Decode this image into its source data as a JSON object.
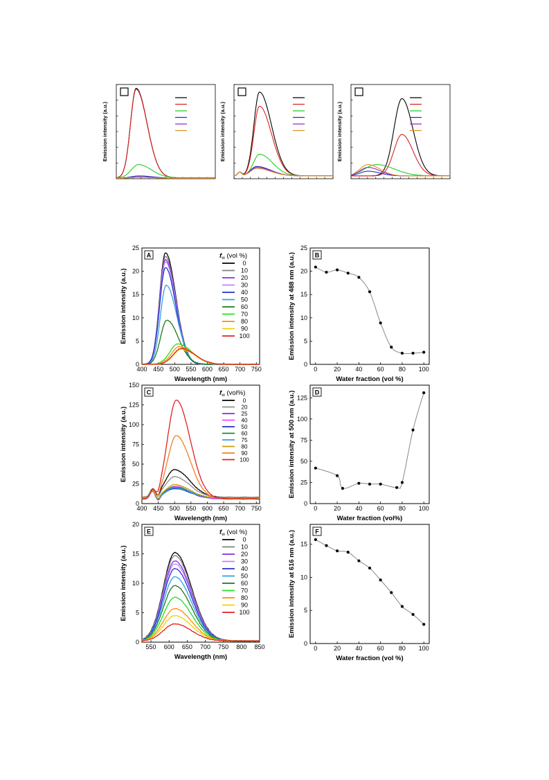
{
  "chart_data": [
    {
      "id": "top-a",
      "type": "line",
      "panel_label": "",
      "title": "",
      "xlabel": "",
      "ylabel": "Emission intensity (a.u.)",
      "xlim": [
        400,
        750
      ],
      "ylim": [
        0,
        100
      ],
      "xticks_count": 12,
      "yticks_count": 6,
      "tick_labels_visible": false,
      "legend": {
        "position": "top-right",
        "title": "",
        "entries": [
          "",
          "",
          "",
          "",
          "",
          ""
        ]
      },
      "series": [
        {
          "color": "#000000",
          "gaussian": {
            "peak": 470,
            "amp": 95,
            "width_left": 28,
            "width_right": 55,
            "base": 1
          }
        },
        {
          "color": "#e02020",
          "gaussian": {
            "peak": 470,
            "amp": 94,
            "width_left": 28,
            "width_right": 55,
            "base": 1
          }
        },
        {
          "color": "#22cc22",
          "gaussian": {
            "peak": 478,
            "amp": 14,
            "width_left": 35,
            "width_right": 65,
            "base": 1
          }
        },
        {
          "color": "#1a2fd0",
          "gaussian": {
            "peak": 480,
            "amp": 2.5,
            "width_left": 40,
            "width_right": 70,
            "base": 0.5
          }
        },
        {
          "color": "#a020c0",
          "gaussian": {
            "peak": 480,
            "amp": 1.5,
            "width_left": 40,
            "width_right": 70,
            "base": 0.5
          }
        },
        {
          "color": "#e09020",
          "gaussian": {
            "peak": 480,
            "amp": 1.0,
            "width_left": 40,
            "width_right": 70,
            "base": 0.5
          }
        }
      ]
    },
    {
      "id": "top-b",
      "type": "line",
      "panel_label": "",
      "title": "",
      "xlabel": "",
      "ylabel": "Emission intensity (a.u.)",
      "xlim": [
        400,
        750
      ],
      "ylim": [
        0,
        100
      ],
      "xticks_count": 12,
      "yticks_count": 6,
      "tick_labels_visible": false,
      "legend": {
        "position": "top-right",
        "title": "",
        "entries": [
          "",
          "",
          "",
          "",
          "",
          ""
        ]
      },
      "series": [
        {
          "color": "#000000",
          "gaussian": {
            "peak": 490,
            "amp": 89,
            "width_left": 28,
            "width_right": 60,
            "base": 3
          }
        },
        {
          "color": "#e02020",
          "gaussian": {
            "peak": 490,
            "amp": 74,
            "width_left": 28,
            "width_right": 60,
            "base": 3
          }
        },
        {
          "color": "#22cc22",
          "gaussian": {
            "peak": 490,
            "amp": 23,
            "width_left": 30,
            "width_right": 65,
            "base": 3
          }
        },
        {
          "color": "#1a2fd0",
          "gaussian": {
            "peak": 480,
            "amp": 10,
            "width_left": 30,
            "width_right": 70,
            "base": 3
          }
        },
        {
          "color": "#a020c0",
          "gaussian": {
            "peak": 480,
            "amp": 9,
            "width_left": 30,
            "width_right": 70,
            "base": 3
          }
        },
        {
          "color": "#e09020",
          "gaussian": {
            "peak": 480,
            "amp": 8,
            "width_left": 30,
            "width_right": 70,
            "base": 3
          }
        }
      ]
    },
    {
      "id": "top-c",
      "type": "line",
      "panel_label": "",
      "title": "",
      "xlabel": "",
      "ylabel": "Emission intensity (a.u.)",
      "xlim": [
        400,
        750
      ],
      "ylim": [
        0,
        100
      ],
      "xticks_count": 12,
      "yticks_count": 6,
      "tick_labels_visible": false,
      "legend": {
        "position": "top-right",
        "title": "",
        "entries": [
          "",
          "",
          "",
          "",
          "",
          ""
        ]
      },
      "series": [
        {
          "color": "#000000",
          "gaussian": {
            "peak": 580,
            "amp": 82,
            "width_left": 40,
            "width_right": 55,
            "base": 3
          }
        },
        {
          "color": "#e02020",
          "gaussian": {
            "peak": 580,
            "amp": 44,
            "width_left": 40,
            "width_right": 55,
            "base": 3
          }
        },
        {
          "color": "#22cc22",
          "gaussian": {
            "peak": 490,
            "amp": 12,
            "width_left": 60,
            "width_right": 90,
            "base": 3
          }
        },
        {
          "color": "#1a2fd0",
          "gaussian": {
            "peak": 460,
            "amp": 5,
            "width_left": 40,
            "width_right": 60,
            "base": 3
          }
        },
        {
          "color": "#a020c0",
          "gaussian": {
            "peak": 460,
            "amp": 9,
            "width_left": 40,
            "width_right": 60,
            "base": 3
          }
        },
        {
          "color": "#e09020",
          "gaussian": {
            "peak": 460,
            "amp": 12,
            "width_left": 40,
            "width_right": 60,
            "base": 3
          }
        }
      ]
    },
    {
      "id": "A",
      "type": "line",
      "panel_label": "A",
      "title": "",
      "xlabel": "Wavelength (nm)",
      "ylabel": "Emission intensity (a.u.)",
      "xlim": [
        400,
        760
      ],
      "ylim": [
        0,
        25
      ],
      "xticks": [
        400,
        450,
        500,
        550,
        600,
        650,
        700,
        750
      ],
      "yticks": [
        0,
        5,
        10,
        15,
        20,
        25
      ],
      "legend": {
        "position": "top-right",
        "title": "f",
        "title_sub": "w",
        "title_suffix": " (vol %)",
        "entries": [
          "0",
          "10",
          "20",
          "30",
          "40",
          "50",
          "60",
          "70",
          "80",
          "90",
          "100"
        ]
      },
      "series": [
        {
          "name": "0",
          "color": "#000000",
          "gaussian": {
            "peak": 472,
            "amp": 24.0,
            "width_left": 25,
            "width_right": 45,
            "base": 0
          }
        },
        {
          "name": "10",
          "color": "#808080",
          "gaussian": {
            "peak": 472,
            "amp": 23.2,
            "width_left": 25,
            "width_right": 45,
            "base": 0
          }
        },
        {
          "name": "20",
          "color": "#8a2be2",
          "gaussian": {
            "peak": 472,
            "amp": 22.5,
            "width_left": 25,
            "width_right": 45,
            "base": 0
          }
        },
        {
          "name": "30",
          "color": "#c080ff",
          "gaussian": {
            "peak": 472,
            "amp": 22.0,
            "width_left": 25,
            "width_right": 45,
            "base": 0
          }
        },
        {
          "name": "40",
          "color": "#2030d0",
          "gaussian": {
            "peak": 472,
            "amp": 20.8,
            "width_left": 25,
            "width_right": 45,
            "base": 0
          }
        },
        {
          "name": "50",
          "color": "#2e9fe0",
          "gaussian": {
            "peak": 474,
            "amp": 17.0,
            "width_left": 25,
            "width_right": 47,
            "base": 0
          }
        },
        {
          "name": "60",
          "color": "#1a7a1a",
          "gaussian": {
            "peak": 476,
            "amp": 9.5,
            "width_left": 27,
            "width_right": 50,
            "base": 0
          }
        },
        {
          "name": "70",
          "color": "#22dd22",
          "gaussian": {
            "peak": 510,
            "amp": 4.4,
            "width_left": 35,
            "width_right": 60,
            "base": 0
          }
        },
        {
          "name": "80",
          "color": "#ff8c00",
          "gaussian": {
            "peak": 515,
            "amp": 3.8,
            "width_left": 35,
            "width_right": 60,
            "base": 0
          }
        },
        {
          "name": "90",
          "color": "#f0d000",
          "gaussian": {
            "peak": 520,
            "amp": 3.2,
            "width_left": 35,
            "width_right": 60,
            "base": 0
          }
        },
        {
          "name": "100",
          "color": "#e02020",
          "gaussian": {
            "peak": 520,
            "amp": 3.4,
            "width_left": 35,
            "width_right": 60,
            "base": 0
          }
        }
      ]
    },
    {
      "id": "B",
      "type": "scatter",
      "panel_label": "B",
      "title": "",
      "xlabel": "Water fraction (vol %)",
      "ylabel": "Emission intensity at 488 nm (a.u.)",
      "xlim": [
        -5,
        105
      ],
      "ylim": [
        0,
        25
      ],
      "xticks": [
        0,
        20,
        40,
        60,
        80,
        100
      ],
      "yticks": [
        0,
        5,
        10,
        15,
        20,
        25
      ],
      "x": [
        0,
        10,
        20,
        30,
        40,
        50,
        60,
        70,
        80,
        90,
        100
      ],
      "y": [
        20.9,
        19.8,
        20.3,
        19.6,
        18.7,
        15.6,
        8.9,
        3.7,
        2.4,
        2.4,
        2.6
      ],
      "point_color": "#000000",
      "line_color": "#888888"
    },
    {
      "id": "C",
      "type": "line",
      "panel_label": "C",
      "title": "",
      "xlabel": "Wavelength (nm)",
      "ylabel": "Emission intensity (a.u.)",
      "xlim": [
        400,
        760
      ],
      "ylim": [
        0,
        150
      ],
      "xticks": [
        400,
        450,
        500,
        550,
        600,
        650,
        700,
        750
      ],
      "yticks": [
        0,
        25,
        50,
        75,
        100,
        125,
        150
      ],
      "legend": {
        "position": "top-right",
        "title": "f",
        "title_sub": "w",
        "title_suffix": " (vol%)",
        "entries": [
          "0",
          "20",
          "25",
          "40",
          "50",
          "60",
          "75",
          "80",
          "90",
          "100"
        ]
      },
      "series": [
        {
          "name": "0",
          "color": "#000000",
          "gaussian": {
            "peak": 500,
            "amp": 35,
            "width_left": 40,
            "width_right": 65,
            "base": 8
          }
        },
        {
          "name": "20",
          "color": "#909090",
          "gaussian": {
            "peak": 500,
            "amp": 26,
            "width_left": 40,
            "width_right": 65,
            "base": 8
          }
        },
        {
          "name": "25",
          "color": "#8a2be2",
          "gaussian": {
            "peak": 500,
            "amp": 14,
            "width_left": 40,
            "width_right": 65,
            "base": 6
          }
        },
        {
          "name": "40",
          "color": "#ff40ff",
          "gaussian": {
            "peak": 500,
            "amp": 16,
            "width_left": 40,
            "width_right": 65,
            "base": 6
          }
        },
        {
          "name": "50",
          "color": "#1a2fd0",
          "gaussian": {
            "peak": 500,
            "amp": 12,
            "width_left": 40,
            "width_right": 65,
            "base": 7
          }
        },
        {
          "name": "60",
          "color": "#1a8a3a",
          "gaussian": {
            "peak": 500,
            "amp": 14,
            "width_left": 40,
            "width_right": 65,
            "base": 7
          }
        },
        {
          "name": "75",
          "color": "#2e9fe0",
          "gaussian": {
            "peak": 500,
            "amp": 13,
            "width_left": 40,
            "width_right": 65,
            "base": 7
          }
        },
        {
          "name": "80",
          "color": "#c8a000",
          "gaussian": {
            "peak": 500,
            "amp": 17,
            "width_left": 40,
            "width_right": 65,
            "base": 7
          }
        },
        {
          "name": "90",
          "color": "#f08020",
          "gaussian": {
            "peak": 505,
            "amp": 80,
            "width_left": 38,
            "width_right": 60,
            "base": 6
          }
        },
        {
          "name": "100",
          "color": "#e02020",
          "gaussian": {
            "peak": 505,
            "amp": 125,
            "width_left": 38,
            "width_right": 60,
            "base": 6
          }
        }
      ]
    },
    {
      "id": "D",
      "type": "scatter",
      "panel_label": "D",
      "title": "",
      "xlabel": "Water fraction (vol%)",
      "ylabel": "Emission intensity at 500 nm (a.u.)",
      "xlim": [
        -5,
        105
      ],
      "ylim": [
        0,
        140
      ],
      "xticks": [
        0,
        20,
        40,
        60,
        80,
        100
      ],
      "yticks": [
        0,
        25,
        50,
        75,
        100,
        125
      ],
      "x": [
        0,
        20,
        25,
        40,
        50,
        60,
        75,
        80,
        90,
        100
      ],
      "y": [
        42,
        33,
        18,
        24,
        23,
        23,
        19,
        25,
        87,
        131
      ],
      "point_color": "#000000",
      "line_color": "#888888"
    },
    {
      "id": "E",
      "type": "line",
      "panel_label": "E",
      "title": "",
      "xlabel": "Wavelength (nm)",
      "ylabel": "Emission intensity (a.u.)",
      "xlim": [
        525,
        850
      ],
      "ylim": [
        0,
        20
      ],
      "xticks": [
        550,
        600,
        650,
        700,
        750,
        800,
        850
      ],
      "yticks": [
        0,
        5,
        10,
        15,
        20
      ],
      "legend": {
        "position": "top-right",
        "title": "f",
        "title_sub": "w",
        "title_suffix": " (vol %)",
        "entries": [
          "0",
          "10",
          "20",
          "30",
          "40",
          "50",
          "60",
          "70",
          "80",
          "90",
          "100"
        ]
      },
      "series": [
        {
          "name": "0",
          "color": "#000000",
          "gaussian": {
            "peak": 616,
            "amp": 15.0,
            "width_left": 45,
            "width_right": 65,
            "base": 0.2
          }
        },
        {
          "name": "10",
          "color": "#808080",
          "gaussian": {
            "peak": 616,
            "amp": 14.5,
            "width_left": 45,
            "width_right": 65,
            "base": 0.2
          }
        },
        {
          "name": "20",
          "color": "#8a2be2",
          "gaussian": {
            "peak": 616,
            "amp": 13.6,
            "width_left": 45,
            "width_right": 65,
            "base": 0.2
          }
        },
        {
          "name": "30",
          "color": "#c080ff",
          "gaussian": {
            "peak": 616,
            "amp": 13.1,
            "width_left": 45,
            "width_right": 65,
            "base": 0.2
          }
        },
        {
          "name": "40",
          "color": "#2030d0",
          "gaussian": {
            "peak": 616,
            "amp": 12.3,
            "width_left": 45,
            "width_right": 65,
            "base": 0.2
          }
        },
        {
          "name": "50",
          "color": "#2e9fe0",
          "gaussian": {
            "peak": 616,
            "amp": 10.9,
            "width_left": 45,
            "width_right": 65,
            "base": 0.2
          }
        },
        {
          "name": "60",
          "color": "#1a7a1a",
          "gaussian": {
            "peak": 616,
            "amp": 9.4,
            "width_left": 45,
            "width_right": 65,
            "base": 0.2
          }
        },
        {
          "name": "70",
          "color": "#22dd22",
          "gaussian": {
            "peak": 616,
            "amp": 7.4,
            "width_left": 45,
            "width_right": 65,
            "base": 0.2
          }
        },
        {
          "name": "80",
          "color": "#ff8c00",
          "gaussian": {
            "peak": 616,
            "amp": 5.5,
            "width_left": 45,
            "width_right": 65,
            "base": 0.2
          }
        },
        {
          "name": "90",
          "color": "#f0d000",
          "gaussian": {
            "peak": 616,
            "amp": 4.3,
            "width_left": 45,
            "width_right": 65,
            "base": 0.2
          }
        },
        {
          "name": "100",
          "color": "#e02020",
          "gaussian": {
            "peak": 616,
            "amp": 2.9,
            "width_left": 45,
            "width_right": 65,
            "base": 0.2
          }
        }
      ]
    },
    {
      "id": "F",
      "type": "scatter",
      "panel_label": "F",
      "title": "",
      "xlabel": "Water fraction (vol %)",
      "ylabel": "Emission intensity at 616 nm (a.u.)",
      "xlim": [
        -5,
        105
      ],
      "ylim": [
        0,
        18
      ],
      "xticks": [
        0,
        20,
        40,
        60,
        80,
        100
      ],
      "yticks": [
        0,
        5,
        10,
        15
      ],
      "x": [
        0,
        10,
        20,
        30,
        40,
        50,
        60,
        70,
        80,
        90,
        100
      ],
      "y": [
        15.7,
        14.8,
        14.0,
        13.8,
        12.5,
        11.4,
        9.6,
        7.7,
        5.6,
        4.4,
        2.9
      ],
      "point_color": "#000000",
      "line_color": "#888888"
    }
  ]
}
